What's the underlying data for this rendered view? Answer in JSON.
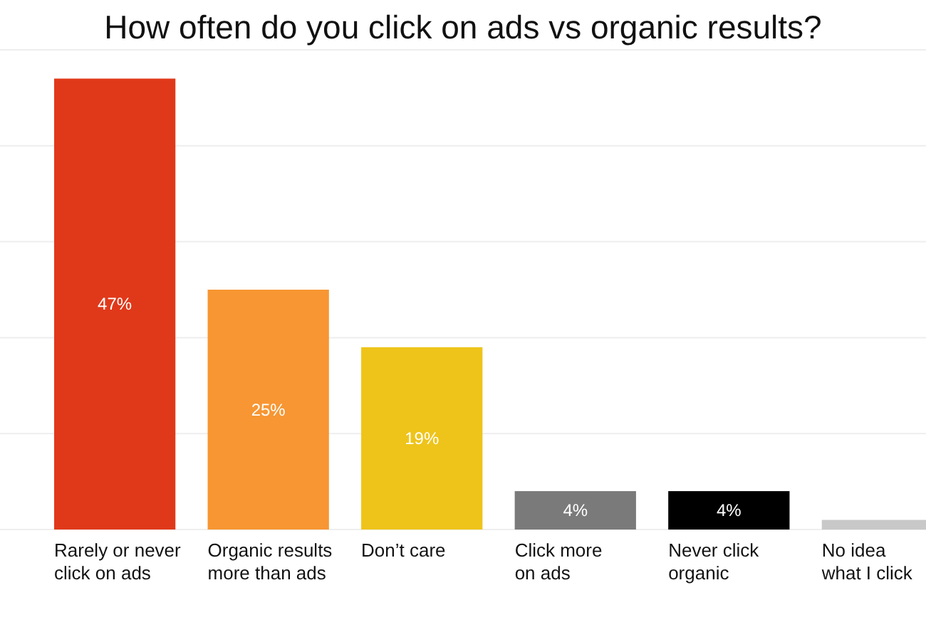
{
  "chart_data": {
    "type": "bar",
    "title": "How often do you click on ads vs organic results?",
    "categories": [
      "Rarely or never click on ads",
      "Organic results more than ads",
      "Don’t care",
      "Click more on ads",
      "Never click organic",
      "No idea what I click"
    ],
    "values": [
      47,
      25,
      19,
      4,
      4,
      1
    ],
    "colors": [
      "#e0391a",
      "#f79633",
      "#eec41a",
      "#7a7a7a",
      "#000000",
      "#c8c8c8"
    ],
    "value_labels": [
      "47%",
      "25%",
      "19%",
      "4%",
      "4%",
      null
    ],
    "ylim": [
      0,
      50
    ],
    "yticks": [
      {
        "value": 0,
        "label": null
      },
      {
        "value": 10,
        "label": null
      },
      {
        "value": 20,
        "label": null
      },
      {
        "value": 30,
        "label": null
      },
      {
        "value": 40,
        "label": null
      },
      {
        "value": 50,
        "label": null
      }
    ],
    "grid": "y"
  }
}
